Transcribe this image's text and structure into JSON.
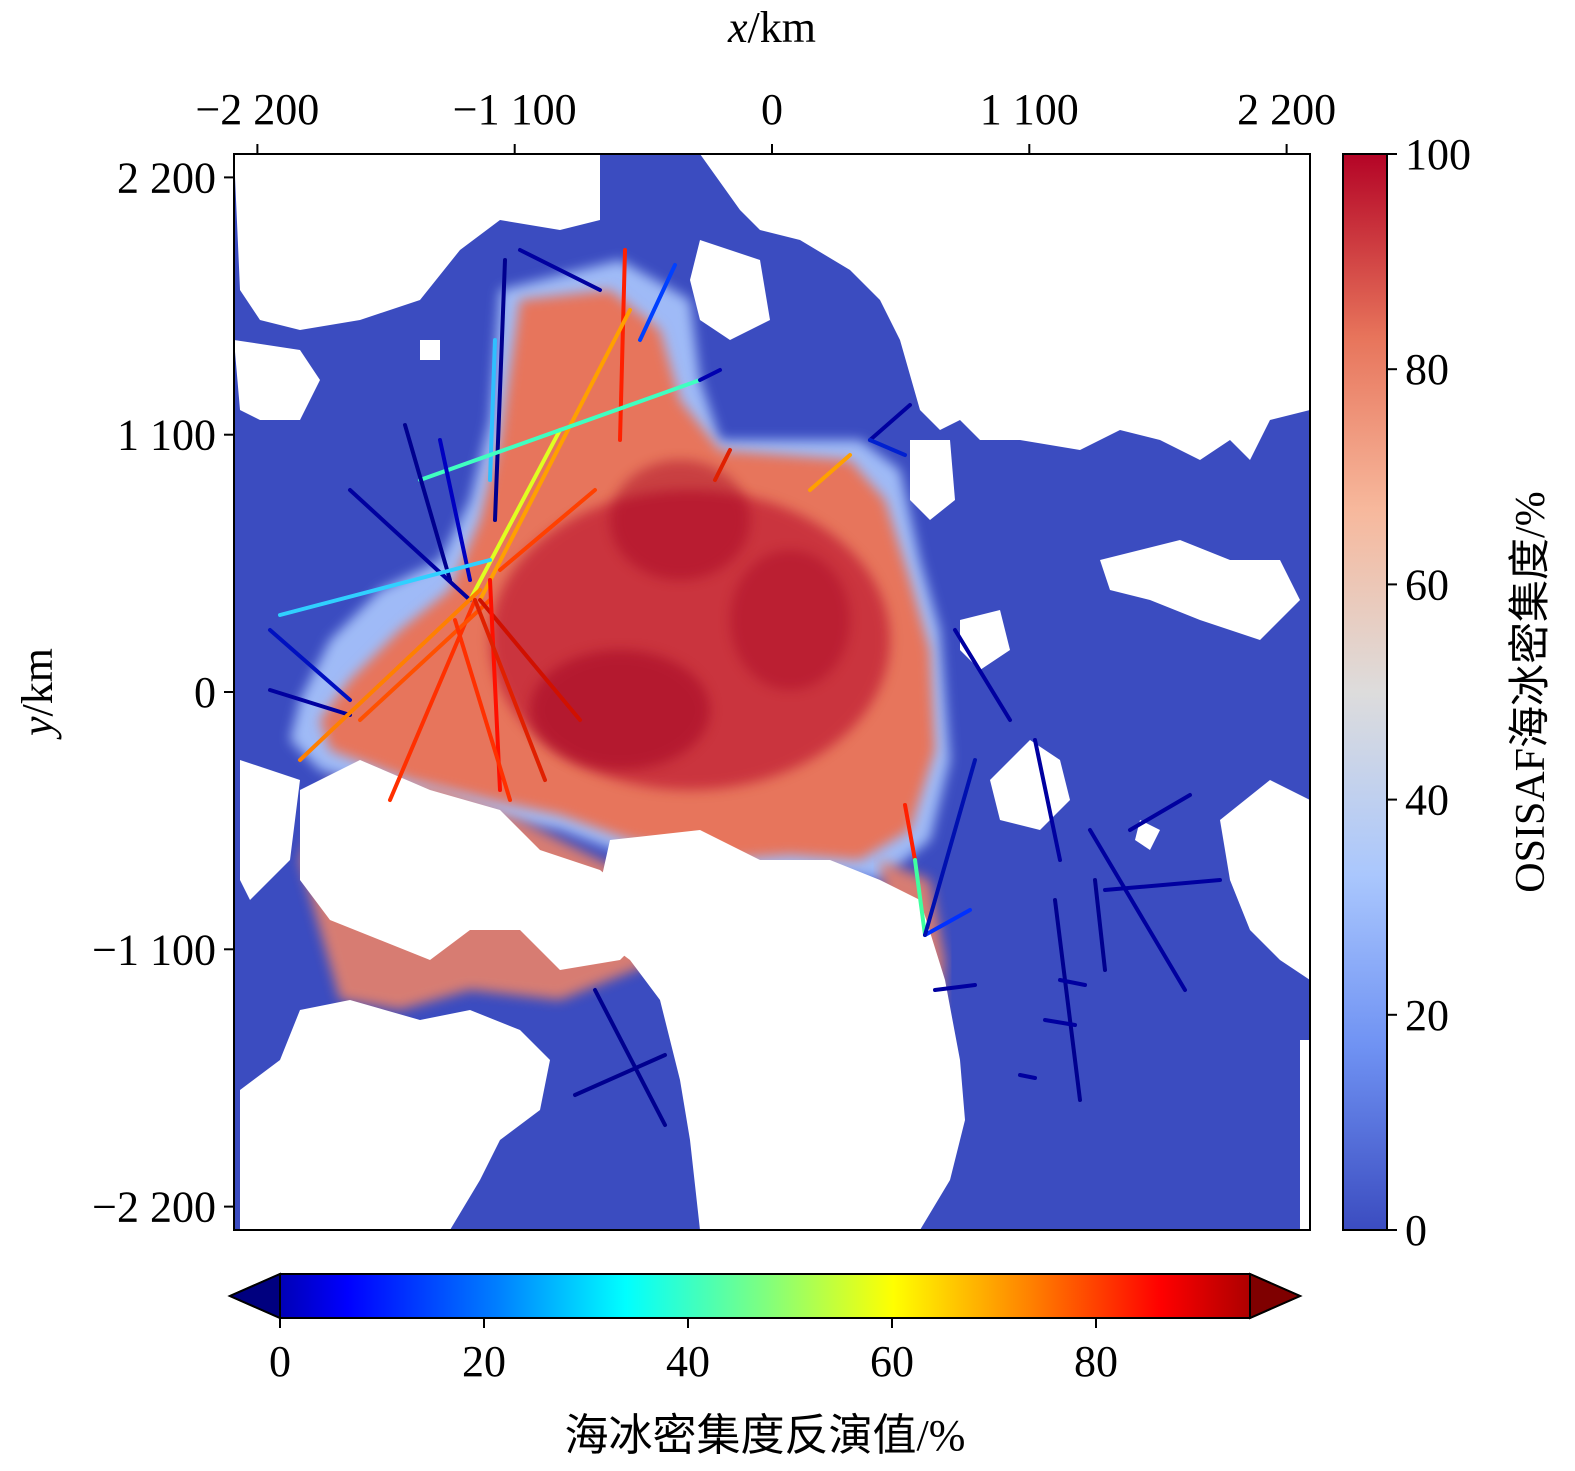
{
  "chart_data": {
    "type": "heatmap",
    "title": "",
    "map": {
      "xlabel_italic": "x",
      "xlabel_unit": "/km",
      "ylabel_italic": "y",
      "ylabel_unit": "/km",
      "xlim": [
        -2400,
        4600
      ],
      "ylim": [
        -2400,
        2200
      ],
      "xlim_km": [
        -2300,
        2300
      ],
      "ylim_km": [
        -2300,
        2300
      ],
      "xticks": [
        {
          "value": -2200,
          "label": "−2 200"
        },
        {
          "value": -1100,
          "label": "−1 100"
        },
        {
          "value": 0,
          "label": "0"
        },
        {
          "value": 1100,
          "label": "1 100"
        },
        {
          "value": 2200,
          "label": "2 200"
        }
      ],
      "yticks": [
        {
          "value": 2200,
          "label": "2 200"
        },
        {
          "value": 1100,
          "label": "1 100"
        },
        {
          "value": 0,
          "label": "0"
        },
        {
          "value": -1100,
          "label": "−1 100"
        },
        {
          "value": -2200,
          "label": "−2 200"
        }
      ],
      "x_axis_position": "top",
      "grid": false
    },
    "colorbar_right": {
      "label": "OSISAF海冰密集度/%",
      "range": [
        0,
        100
      ],
      "ticks": [
        {
          "value": 0,
          "label": "0"
        },
        {
          "value": 20,
          "label": "20"
        },
        {
          "value": 40,
          "label": "40"
        },
        {
          "value": 60,
          "label": "60"
        },
        {
          "value": 80,
          "label": "80"
        },
        {
          "value": 100,
          "label": "100"
        }
      ],
      "colormap": [
        "#3b4cc0",
        "#6f92f3",
        "#aac7fd",
        "#dddcdc",
        "#f7b89c",
        "#e7745b",
        "#b40426"
      ]
    },
    "colorbar_bottom": {
      "label": "海冰密集度反演值/%",
      "range": [
        0,
        100
      ],
      "extend": "both",
      "ticks": [
        {
          "value": 0,
          "label": "0"
        },
        {
          "value": 20,
          "label": "20"
        },
        {
          "value": 40,
          "label": "40"
        },
        {
          "value": 60,
          "label": "60"
        },
        {
          "value": 80,
          "label": "80"
        }
      ],
      "colormap": [
        "#00007f",
        "#0000ff",
        "#007fff",
        "#00ffff",
        "#7fff7f",
        "#ffff00",
        "#ff7f00",
        "#ff0000",
        "#7f0000"
      ]
    },
    "colors": {
      "ocean": "#3b4cc0",
      "land": "#ffffff"
    }
  }
}
